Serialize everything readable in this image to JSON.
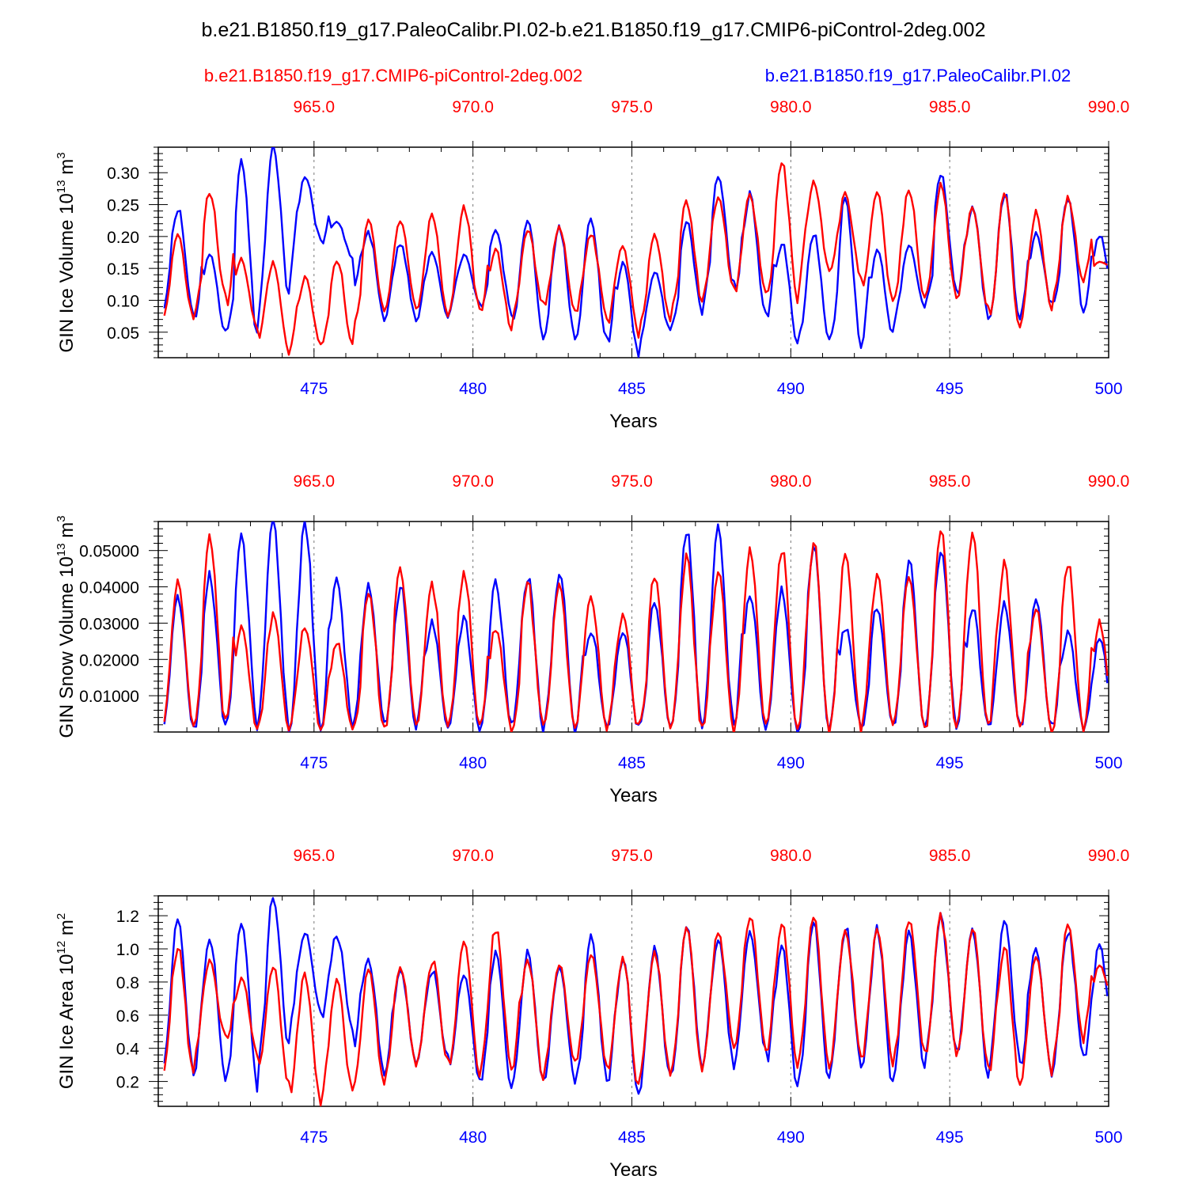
{
  "title": "b.e21.B1850.f19_g17.PaleoCalibr.PI.02-b.e21.B1850.f19_g17.CMIP6-piControl-2deg.002",
  "legend": {
    "red_label": "b.e21.B1850.f19_g17.CMIP6-piControl-2deg.002",
    "blue_label": "b.e21.B1850.f19_g17.PaleoCalibr.PI.02",
    "red_color": "#ff0000",
    "blue_color": "#0000ff"
  },
  "chart_data": [
    {
      "type": "line",
      "ylabel": "GIN Ice Volume 10",
      "ylabel_exp": "13",
      "ylabel_unit": " m",
      "ylabel_unit_exp": "3",
      "xlabel": "Years",
      "xlim": [
        470.1,
        500
      ],
      "ylim": [
        0.01,
        0.34
      ],
      "bottom_ticks": [
        "475",
        "480",
        "485",
        "490",
        "495",
        "500"
      ],
      "top_ticks": [
        "965.0",
        "970.0",
        "975.0",
        "980.0",
        "985.0",
        "990.0"
      ],
      "y_ticks": [
        "0.05",
        "0.10",
        "0.15",
        "0.20",
        "0.25",
        "0.30"
      ],
      "y_tick_values": [
        0.05,
        0.1,
        0.15,
        0.2,
        0.25,
        0.3
      ],
      "series": [
        {
          "name": "b.e21.B1850.f19_g17.PaleoCalibr.PI.02",
          "color": "#0000ff",
          "min": [
            0.08,
            0.05,
            0.045,
            0.11,
            0.195,
            0.165,
            0.07,
            0.07,
            0.07,
            0.095,
            0.08,
            0.04,
            0.045,
            0.035,
            0.015,
            0.05,
            0.08,
            0.125,
            0.08,
            0.035,
            0.04,
            0.03,
            0.045,
            0.09,
            0.12,
            0.075,
            0.065,
            0.095,
            0.085,
            0.09
          ],
          "max": [
            0.245,
            0.175,
            0.32,
            0.34,
            0.295,
            0.225,
            0.205,
            0.19,
            0.175,
            0.17,
            0.215,
            0.23,
            0.215,
            0.23,
            0.155,
            0.145,
            0.225,
            0.295,
            0.265,
            0.19,
            0.205,
            0.26,
            0.18,
            0.185,
            0.295,
            0.245,
            0.27,
            0.205,
            0.26,
            0.2
          ]
        },
        {
          "name": "b.e21.B1850.f19_g17.CMIP6-piControl-2deg.002",
          "color": "#ff0000",
          "min": [
            0.07,
            0.105,
            0.055,
            0.015,
            0.03,
            0.03,
            0.085,
            0.09,
            0.075,
            0.085,
            0.055,
            0.095,
            0.085,
            0.075,
            0.045,
            0.07,
            0.1,
            0.115,
            0.11,
            0.1,
            0.145,
            0.135,
            0.095,
            0.1,
            0.105,
            0.085,
            0.05,
            0.08,
            0.125,
            0.15
          ],
          "max": [
            0.2,
            0.27,
            0.165,
            0.16,
            0.135,
            0.165,
            0.225,
            0.225,
            0.235,
            0.245,
            0.18,
            0.21,
            0.215,
            0.205,
            0.185,
            0.2,
            0.255,
            0.265,
            0.265,
            0.315,
            0.285,
            0.265,
            0.27,
            0.275,
            0.28,
            0.245,
            0.27,
            0.24,
            0.26,
            0.16
          ]
        }
      ]
    },
    {
      "type": "line",
      "ylabel": "GIN Snow Volume 10",
      "ylabel_exp": "13",
      "ylabel_unit": " m",
      "ylabel_unit_exp": "3",
      "xlabel": "Years",
      "xlim": [
        470.1,
        500
      ],
      "ylim": [
        0,
        0.058
      ],
      "bottom_ticks": [
        "475",
        "480",
        "485",
        "490",
        "495",
        "500"
      ],
      "top_ticks": [
        "965.0",
        "970.0",
        "975.0",
        "980.0",
        "985.0",
        "990.0"
      ],
      "y_ticks": [
        "0.01000",
        "0.02000",
        "0.03000",
        "0.04000",
        "0.05000"
      ],
      "y_tick_values": [
        0.01,
        0.02,
        0.03,
        0.04,
        0.05
      ],
      "series": [
        {
          "name": "b.e21.B1850.f19_g17.PaleoCalibr.PI.02",
          "color": "#0000ff",
          "min": [
            0.0005,
            0.001,
            0.002,
            0.001,
            0.002,
            0.001,
            0.002,
            0.001,
            0.002,
            0.001,
            0.002,
            0.001,
            0.001,
            0.002,
            0.001,
            0.002,
            0.001,
            0.001,
            0.001,
            0.001,
            0.001,
            0.001,
            0.001,
            0.001,
            0.001,
            0.001,
            0.001,
            0.001,
            0.001,
            0.001
          ],
          "max": [
            0.037,
            0.043,
            0.053,
            0.058,
            0.057,
            0.042,
            0.041,
            0.04,
            0.03,
            0.031,
            0.041,
            0.043,
            0.044,
            0.028,
            0.028,
            0.036,
            0.055,
            0.057,
            0.038,
            0.039,
            0.051,
            0.029,
            0.035,
            0.047,
            0.051,
            0.034,
            0.035,
            0.036,
            0.027,
            0.026
          ]
        },
        {
          "name": "b.e21.B1850.f19_g17.CMIP6-piControl-2deg.002",
          "color": "#ff0000",
          "min": [
            0.001,
            0.003,
            0.001,
            0.001,
            0.001,
            0.001,
            0.001,
            0.001,
            0.001,
            0.001,
            0.001,
            0.001,
            0.001,
            0.001,
            0.001,
            0.001,
            0.001,
            0.001,
            0.001,
            0.001,
            0.001,
            0.001,
            0.001,
            0.001,
            0.001,
            0.001,
            0.001,
            0.001,
            0.001,
            0.001
          ],
          "max": [
            0.042,
            0.054,
            0.029,
            0.032,
            0.029,
            0.025,
            0.039,
            0.045,
            0.04,
            0.044,
            0.029,
            0.041,
            0.04,
            0.037,
            0.032,
            0.043,
            0.048,
            0.044,
            0.05,
            0.05,
            0.052,
            0.048,
            0.043,
            0.044,
            0.055,
            0.055,
            0.046,
            0.035,
            0.046,
            0.03
          ]
        }
      ]
    },
    {
      "type": "line",
      "ylabel": "GIN Ice Area 10",
      "ylabel_exp": "12",
      "ylabel_unit": " m",
      "ylabel_unit_exp": "2",
      "xlabel": "Years",
      "xlim": [
        470.1,
        500
      ],
      "ylim": [
        0.05,
        1.32
      ],
      "bottom_ticks": [
        "475",
        "480",
        "485",
        "490",
        "495",
        "500"
      ],
      "top_ticks": [
        "965.0",
        "970.0",
        "975.0",
        "980.0",
        "985.0",
        "990.0"
      ],
      "y_ticks": [
        "0.2",
        "0.4",
        "0.6",
        "0.8",
        "1.0",
        "1.2"
      ],
      "y_tick_values": [
        0.2,
        0.4,
        0.6,
        0.8,
        1.0,
        1.2
      ],
      "series": [
        {
          "name": "b.e21.B1850.f19_g17.PaleoCalibr.PI.02",
          "color": "#0000ff",
          "min": [
            0.27,
            0.21,
            0.17,
            0.4,
            0.63,
            0.53,
            0.24,
            0.31,
            0.35,
            0.21,
            0.16,
            0.2,
            0.2,
            0.22,
            0.1,
            0.22,
            0.3,
            0.3,
            0.4,
            0.18,
            0.2,
            0.3,
            0.18,
            0.3,
            0.4,
            0.25,
            0.33,
            0.25,
            0.35,
            0.35
          ],
          "max": [
            1.16,
            1.06,
            1.19,
            1.32,
            1.1,
            1.08,
            0.94,
            0.88,
            0.87,
            0.86,
            0.98,
            0.97,
            0.9,
            1.1,
            0.96,
            0.99,
            1.12,
            1.06,
            1.09,
            1.0,
            1.14,
            1.13,
            1.12,
            1.09,
            1.19,
            1.11,
            1.16,
            1.0,
            1.11,
            1.02
          ]
        },
        {
          "name": "b.e21.B1850.f19_g17.CMIP6-piControl-2deg.002",
          "color": "#ff0000",
          "min": [
            0.23,
            0.47,
            0.37,
            0.18,
            0.07,
            0.14,
            0.16,
            0.3,
            0.32,
            0.25,
            0.28,
            0.22,
            0.32,
            0.32,
            0.16,
            0.25,
            0.27,
            0.4,
            0.4,
            0.3,
            0.3,
            0.34,
            0.3,
            0.36,
            0.38,
            0.3,
            0.17,
            0.25,
            0.45,
            0.62
          ],
          "max": [
            1.02,
            0.92,
            0.82,
            0.89,
            0.84,
            0.8,
            0.88,
            0.89,
            0.93,
            1.05,
            1.13,
            0.95,
            0.9,
            0.98,
            0.96,
            0.98,
            1.12,
            1.1,
            1.21,
            1.15,
            1.2,
            1.13,
            1.13,
            1.16,
            1.19,
            1.11,
            1.0,
            0.98,
            1.13,
            0.9
          ]
        }
      ]
    }
  ]
}
